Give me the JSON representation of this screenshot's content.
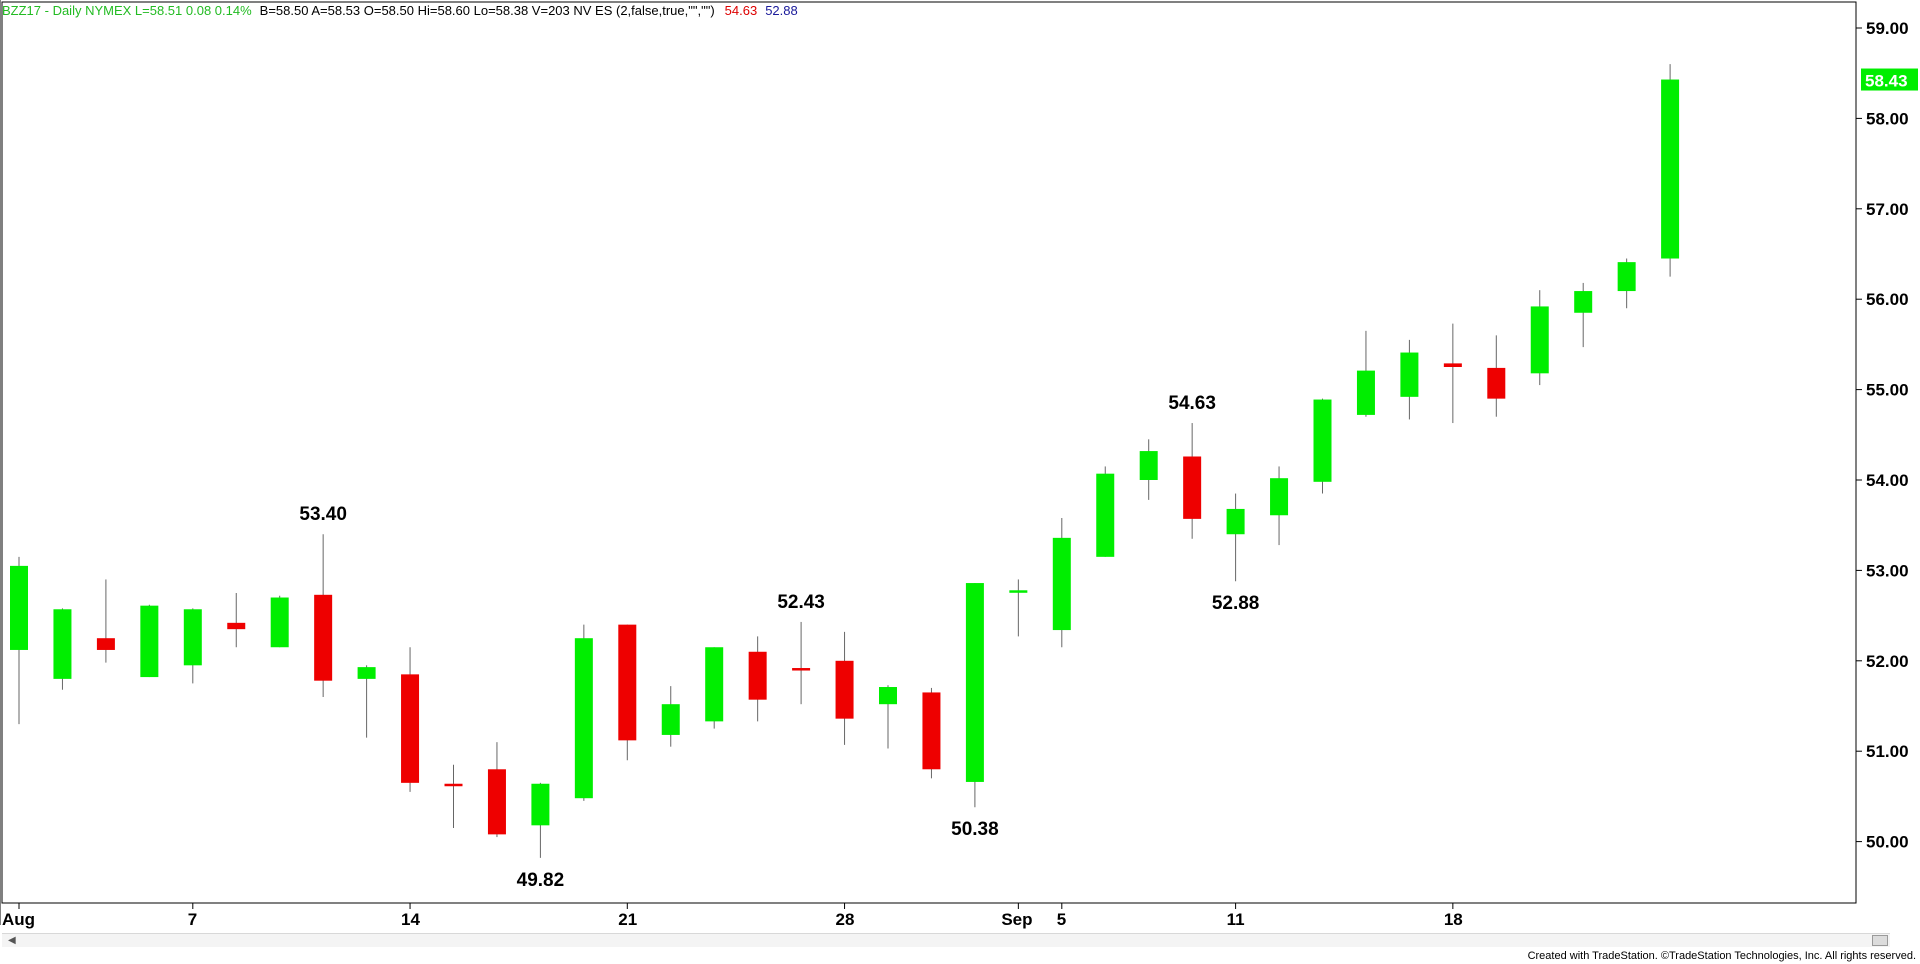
{
  "header": {
    "symbol_info": "BZZ17 - Daily  NYMEX  L=58.51  0.08  0.14%",
    "quote_info": "B=58.50  A=58.53  O=58.50  Hi=58.60  Lo=58.38  V=203  NV ES (2,false,true,\"\",\"\")",
    "indicator_high": "54.63",
    "indicator_low": "52.88",
    "colors": {
      "symbol_info": "#22bb22",
      "quote_info": "#000000",
      "indicator_high": "#dd0000",
      "indicator_low": "#1a1a9a"
    }
  },
  "footer": {
    "credit": "Created with TradeStation. ©TradeStation Technologies, Inc. All rights reserved."
  },
  "chart_data": {
    "type": "candlestick",
    "ylim": [
      49.5,
      59.0
    ],
    "yticks": [
      "59.00",
      "58.00",
      "57.00",
      "56.00",
      "55.00",
      "54.00",
      "53.00",
      "52.00",
      "51.00",
      "50.00"
    ],
    "current_price_label": "58.43",
    "x_ticks": [
      {
        "label": "Aug",
        "index": 0
      },
      {
        "label": "7",
        "index": 4
      },
      {
        "label": "14",
        "index": 9
      },
      {
        "label": "21",
        "index": 14
      },
      {
        "label": "28",
        "index": 19
      },
      {
        "label": "Sep",
        "index": 23
      },
      {
        "label": "5",
        "index": 24
      },
      {
        "label": "11",
        "index": 28
      },
      {
        "label": "18",
        "index": 33
      }
    ],
    "colors": {
      "up": "#00ee00",
      "down": "#ee0000",
      "wick": "#666666"
    },
    "candles": [
      {
        "o": 52.12,
        "h": 53.15,
        "l": 51.3,
        "c": 53.05
      },
      {
        "o": 51.8,
        "h": 52.58,
        "l": 51.68,
        "c": 52.57
      },
      {
        "o": 52.25,
        "h": 52.9,
        "l": 51.98,
        "c": 52.12
      },
      {
        "o": 51.82,
        "h": 52.62,
        "l": 51.82,
        "c": 52.61
      },
      {
        "o": 51.95,
        "h": 52.58,
        "l": 51.75,
        "c": 52.57
      },
      {
        "o": 52.42,
        "h": 52.75,
        "l": 52.15,
        "c": 52.35
      },
      {
        "o": 52.15,
        "h": 52.72,
        "l": 52.15,
        "c": 52.7
      },
      {
        "o": 52.73,
        "h": 53.4,
        "l": 51.6,
        "c": 51.78
      },
      {
        "o": 51.8,
        "h": 51.95,
        "l": 51.15,
        "c": 51.93
      },
      {
        "o": 51.85,
        "h": 52.15,
        "l": 50.55,
        "c": 50.65
      },
      {
        "o": 50.64,
        "h": 50.85,
        "l": 50.15,
        "c": 50.63
      },
      {
        "o": 50.8,
        "h": 51.1,
        "l": 50.05,
        "c": 50.08
      },
      {
        "o": 50.18,
        "h": 50.65,
        "l": 49.82,
        "c": 50.64
      },
      {
        "o": 50.48,
        "h": 52.4,
        "l": 50.45,
        "c": 52.25
      },
      {
        "o": 52.4,
        "h": 52.4,
        "l": 50.9,
        "c": 51.12
      },
      {
        "o": 51.18,
        "h": 51.72,
        "l": 51.05,
        "c": 51.52
      },
      {
        "o": 51.33,
        "h": 52.15,
        "l": 51.25,
        "c": 52.15
      },
      {
        "o": 52.1,
        "h": 52.27,
        "l": 51.33,
        "c": 51.57
      },
      {
        "o": 51.92,
        "h": 52.43,
        "l": 51.52,
        "c": 51.9
      },
      {
        "o": 52.0,
        "h": 52.32,
        "l": 51.07,
        "c": 51.36
      },
      {
        "o": 51.52,
        "h": 51.73,
        "l": 51.03,
        "c": 51.71
      },
      {
        "o": 51.65,
        "h": 51.7,
        "l": 50.7,
        "c": 50.8
      },
      {
        "o": 50.66,
        "h": 52.86,
        "l": 50.38,
        "c": 52.86
      },
      {
        "o": 52.77,
        "h": 52.9,
        "l": 52.27,
        "c": 52.78
      },
      {
        "o": 52.34,
        "h": 53.58,
        "l": 52.15,
        "c": 53.36
      },
      {
        "o": 53.15,
        "h": 54.15,
        "l": 53.15,
        "c": 54.07
      },
      {
        "o": 54.0,
        "h": 54.45,
        "l": 53.78,
        "c": 54.32
      },
      {
        "o": 54.26,
        "h": 54.63,
        "l": 53.35,
        "c": 53.57
      },
      {
        "o": 53.4,
        "h": 53.85,
        "l": 52.88,
        "c": 53.68
      },
      {
        "o": 53.61,
        "h": 54.15,
        "l": 53.28,
        "c": 54.02
      },
      {
        "o": 53.98,
        "h": 54.9,
        "l": 53.85,
        "c": 54.89
      },
      {
        "o": 54.72,
        "h": 55.65,
        "l": 54.7,
        "c": 55.21
      },
      {
        "o": 54.92,
        "h": 55.55,
        "l": 54.67,
        "c": 55.41
      },
      {
        "o": 55.29,
        "h": 55.73,
        "l": 54.63,
        "c": 55.25
      },
      {
        "o": 55.24,
        "h": 55.6,
        "l": 54.7,
        "c": 54.9
      },
      {
        "o": 55.18,
        "h": 56.1,
        "l": 55.05,
        "c": 55.92
      },
      {
        "o": 55.85,
        "h": 56.18,
        "l": 55.47,
        "c": 56.09
      },
      {
        "o": 56.09,
        "h": 56.45,
        "l": 55.9,
        "c": 56.41
      },
      {
        "o": 56.45,
        "h": 58.6,
        "l": 56.25,
        "c": 58.43
      }
    ],
    "annotations": [
      {
        "index": 7,
        "value": "53.40",
        "position": "above"
      },
      {
        "index": 12,
        "value": "49.82",
        "position": "below"
      },
      {
        "index": 18,
        "value": "52.43",
        "position": "above"
      },
      {
        "index": 22,
        "value": "50.38",
        "position": "below"
      },
      {
        "index": 27,
        "value": "54.63",
        "position": "above"
      },
      {
        "index": 28,
        "value": "52.88",
        "position": "below"
      }
    ]
  }
}
